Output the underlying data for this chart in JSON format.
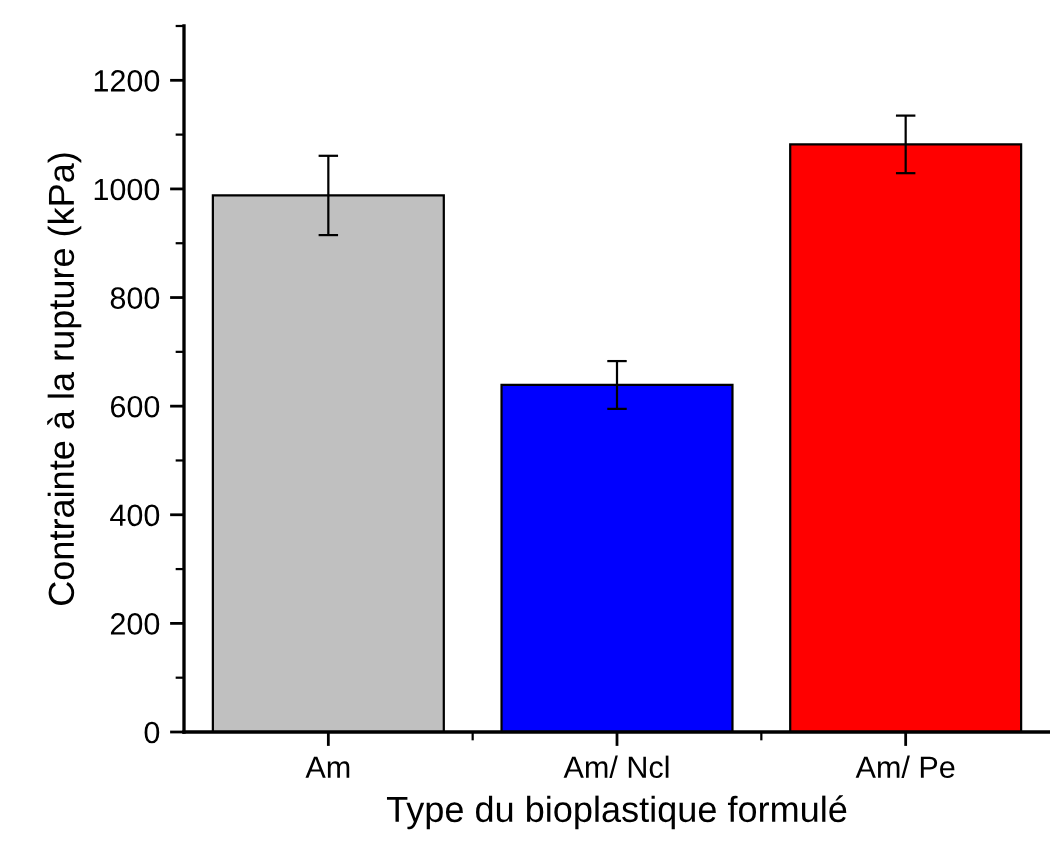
{
  "chart_data": {
    "type": "bar",
    "xlabel": "Type du bioplastique formulé",
    "ylabel": "Contrainte à la rupture (kPa)",
    "categories": [
      "Am",
      "Am/ Ncl",
      "Am/ Pe"
    ],
    "values": [
      988,
      639,
      1082
    ],
    "errors": [
      73,
      44,
      53
    ],
    "colors": [
      "#c0c0c0",
      "#0000ff",
      "#ff0000"
    ],
    "ylim": [
      0,
      1300
    ],
    "yticks": [
      0,
      200,
      400,
      600,
      800,
      1000,
      1200
    ],
    "grid": false,
    "legend": false
  }
}
